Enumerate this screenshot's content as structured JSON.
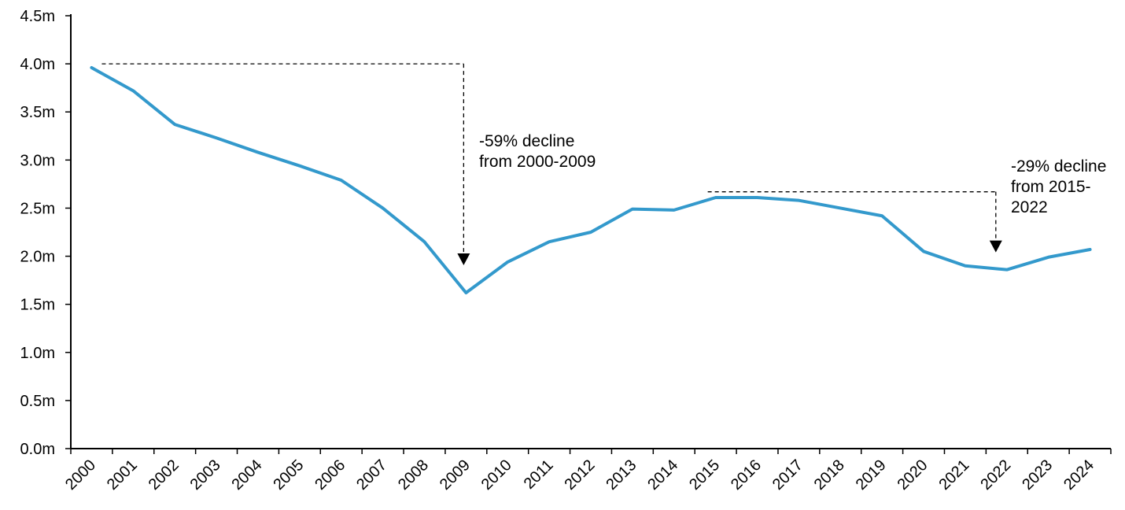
{
  "chart_data": {
    "type": "line",
    "title": "",
    "xlabel": "",
    "ylabel": "",
    "ylim": [
      0,
      4.5
    ],
    "yticks": [
      0,
      0.5,
      1.0,
      1.5,
      2.0,
      2.5,
      3.0,
      3.5,
      4.0,
      4.5
    ],
    "ytick_labels": [
      "0.0m",
      "0.5m",
      "1.0m",
      "1.5m",
      "2.0m",
      "2.5m",
      "3.0m",
      "3.5m",
      "4.0m",
      "4.5m"
    ],
    "categories": [
      "2000",
      "2001",
      "2002",
      "2003",
      "2004",
      "2005",
      "2006",
      "2007",
      "2008",
      "2009",
      "2010",
      "2011",
      "2012",
      "2013",
      "2014",
      "2015",
      "2016",
      "2017",
      "2018",
      "2019",
      "2020",
      "2021",
      "2022",
      "2023",
      "2024"
    ],
    "series": [
      {
        "color": "#3399CC",
        "values": [
          3.96,
          3.72,
          3.37,
          3.23,
          3.08,
          2.94,
          2.79,
          2.5,
          2.15,
          1.62,
          1.94,
          2.15,
          2.25,
          2.49,
          2.48,
          2.61,
          2.61,
          2.58,
          2.5,
          2.42,
          2.05,
          1.9,
          1.86,
          1.99,
          2.07
        ]
      }
    ],
    "grid": false,
    "legend": "none",
    "annotations": [
      {
        "lines": [
          "-59% decline",
          "from 2000-2009"
        ],
        "from_year": "2000",
        "to_year": "2009",
        "level": 4.0
      },
      {
        "lines": [
          "-29% decline",
          "from 2015-",
          "2022"
        ],
        "from_year": "2015",
        "to_year": "2022",
        "level": 2.67
      }
    ]
  }
}
